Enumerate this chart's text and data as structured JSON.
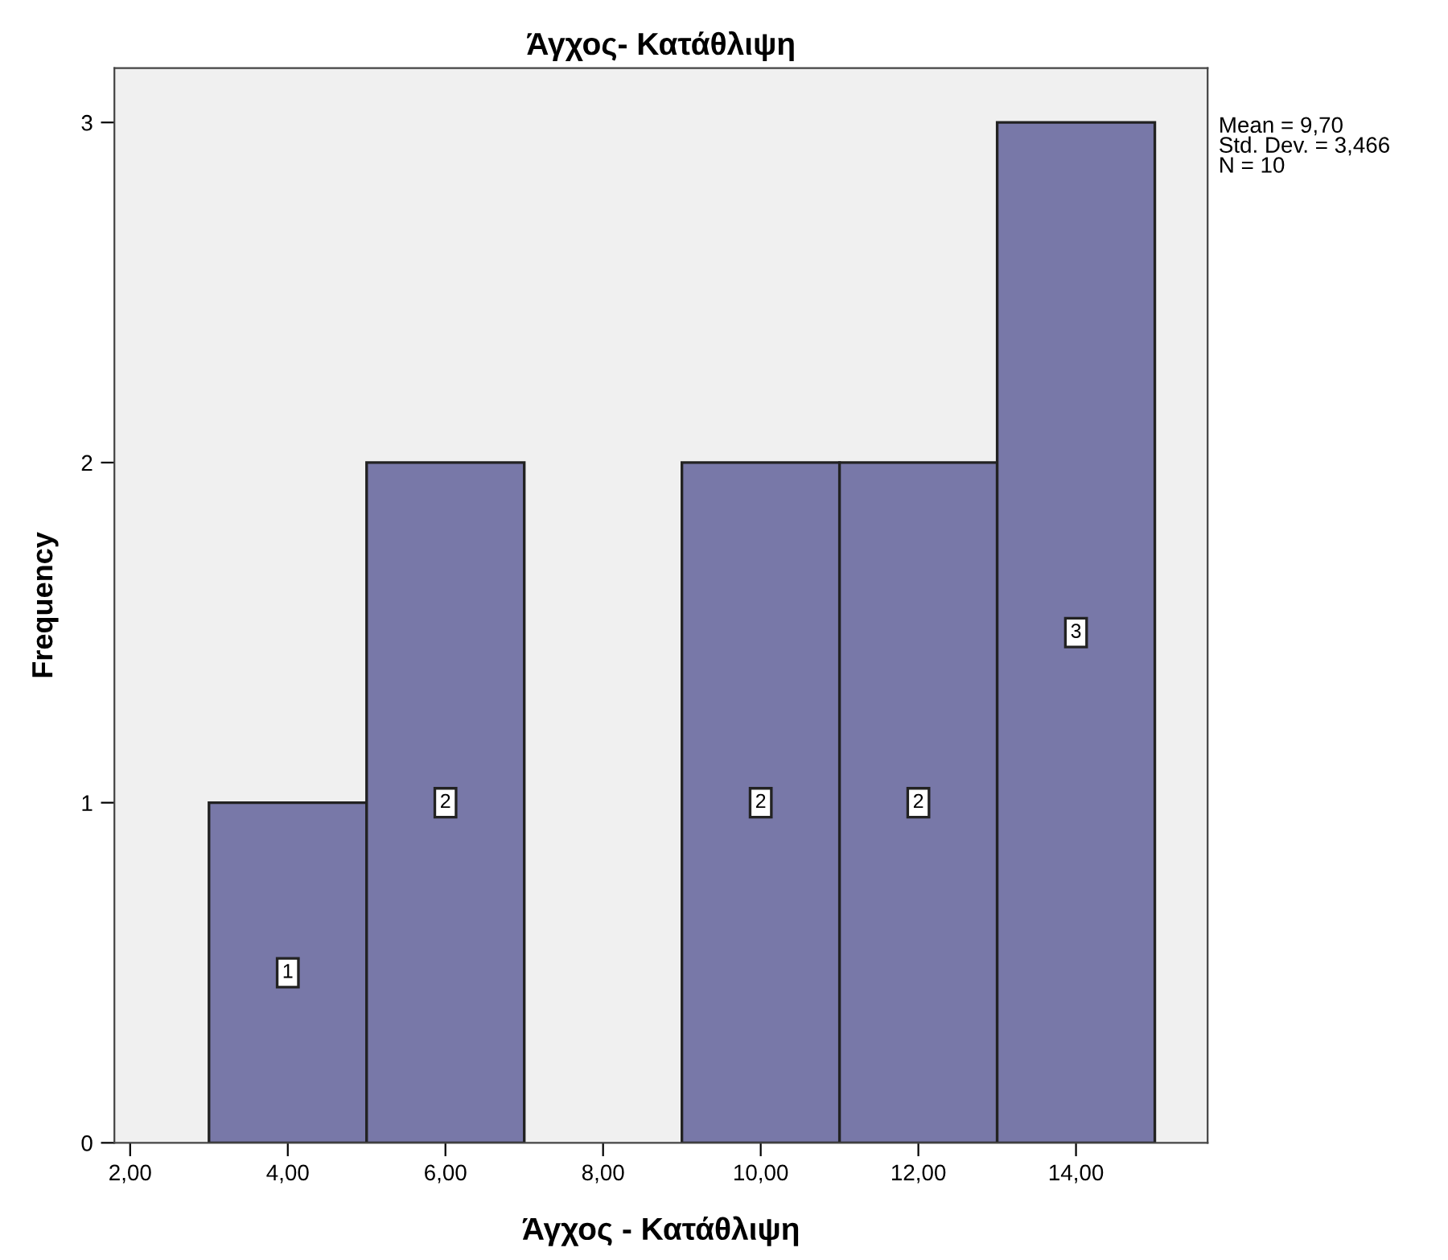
{
  "chart_data": {
    "type": "histogram",
    "title": "Άγχος- Κατάθλιψη",
    "xlabel": "Άγχος - Κατάθλιψη",
    "ylabel": "Frequency",
    "bins": [
      3,
      5,
      7,
      9,
      11,
      13,
      15
    ],
    "values": [
      1,
      2,
      0,
      2,
      2,
      3
    ],
    "value_labels": [
      "1",
      "2",
      null,
      "2",
      "2",
      "3"
    ],
    "color": "#7878a8",
    "xlim": [
      1.8,
      15.67
    ],
    "ylim": [
      0,
      3.16
    ],
    "xticks": [
      {
        "value": 2,
        "label": "2,00"
      },
      {
        "value": 4,
        "label": "4,00"
      },
      {
        "value": 6,
        "label": "6,00"
      },
      {
        "value": 8,
        "label": "8,00"
      },
      {
        "value": 10,
        "label": "10,00"
      },
      {
        "value": 12,
        "label": "12,00"
      },
      {
        "value": 14,
        "label": "14,00"
      }
    ],
    "yticks": [
      0,
      1,
      2,
      3
    ],
    "annotations": [
      "Mean = 9,70\nStd. Dev. = 3,466\nN = 10"
    ],
    "grid": false,
    "legend": false
  }
}
